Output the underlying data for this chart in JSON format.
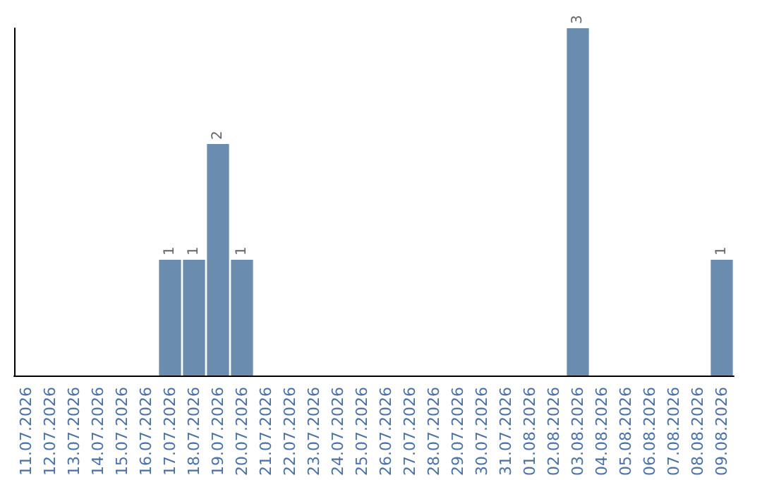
{
  "chart_data": {
    "type": "bar",
    "categories": [
      "11.07.2026",
      "12.07.2026",
      "13.07.2026",
      "14.07.2026",
      "15.07.2026",
      "16.07.2026",
      "17.07.2026",
      "18.07.2026",
      "19.07.2026",
      "20.07.2026",
      "21.07.2026",
      "22.07.2026",
      "23.07.2026",
      "24.07.2026",
      "25.07.2026",
      "26.07.2026",
      "27.07.2026",
      "28.07.2026",
      "29.07.2026",
      "30.07.2026",
      "31.07.2026",
      "01.08.2026",
      "02.08.2026",
      "03.08.2026",
      "04.08.2026",
      "05.08.2026",
      "06.08.2026",
      "07.08.2026",
      "08.08.2026",
      "09.08.2026"
    ],
    "values": [
      0,
      0,
      0,
      0,
      0,
      0,
      1,
      1,
      2,
      1,
      0,
      0,
      0,
      0,
      0,
      0,
      0,
      0,
      0,
      0,
      0,
      0,
      0,
      3,
      0,
      0,
      0,
      0,
      0,
      1
    ],
    "value_labels": [
      null,
      null,
      null,
      null,
      null,
      null,
      "1",
      "1",
      "2",
      "1",
      null,
      null,
      null,
      null,
      null,
      null,
      null,
      null,
      null,
      null,
      null,
      null,
      null,
      "3",
      null,
      null,
      null,
      null,
      null,
      "1"
    ],
    "color": "#6a8caf",
    "tick_labels": "x"
  }
}
